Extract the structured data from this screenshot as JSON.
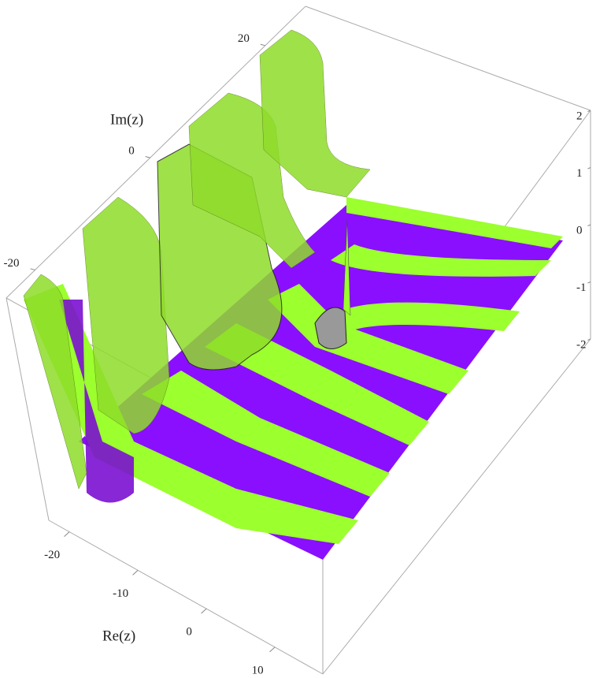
{
  "chart_data": {
    "type": "surface3d",
    "xlabel": "Re(z)",
    "ylabel": "Im(z)",
    "xlim": [
      -23,
      17
    ],
    "xticks": [
      -20,
      -10,
      0,
      10
    ],
    "ylim": [
      -25,
      27
    ],
    "yticks": [
      -20,
      0,
      20
    ],
    "zlim": [
      -2,
      2
    ],
    "zticks": [
      -2,
      -1,
      0,
      1,
      2
    ],
    "colors": [
      "#9cff2e",
      "#8a0fff"
    ]
  }
}
